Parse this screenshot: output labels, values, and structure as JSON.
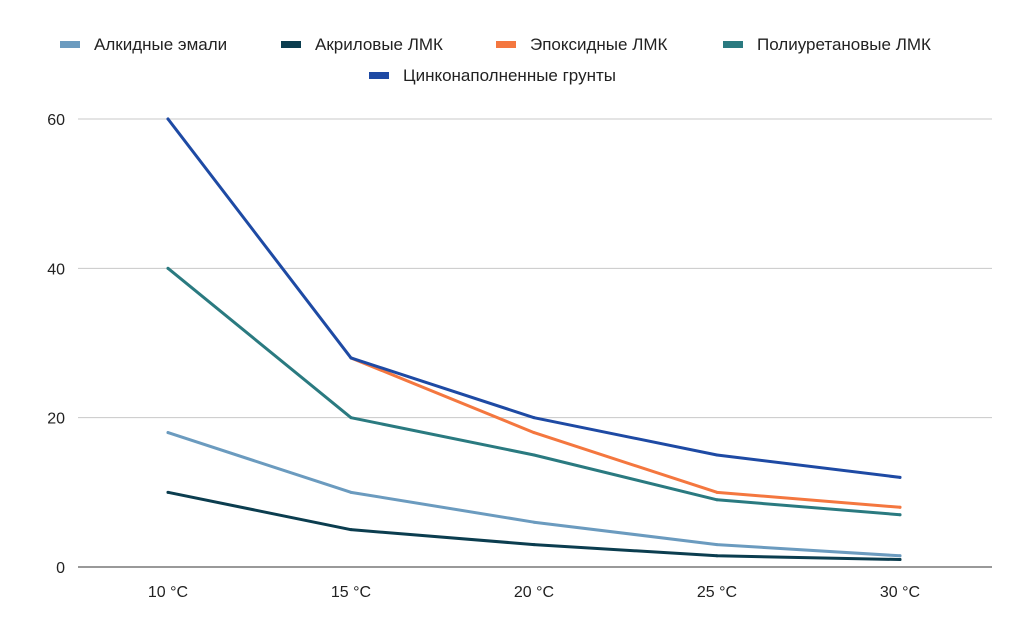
{
  "chart_data": {
    "type": "line",
    "categories": [
      "10 °C",
      "15 °C",
      "20 °C",
      "25 °C",
      "30 °C"
    ],
    "series": [
      {
        "name": "Алкидные эмали",
        "color": "#6b9bbf",
        "values": [
          18,
          10,
          6,
          3,
          1.5
        ]
      },
      {
        "name": "Акриловые ЛМК",
        "color": "#0b3d4f",
        "values": [
          10,
          5,
          3,
          1.5,
          1
        ]
      },
      {
        "name": "Эпоксидные ЛМК",
        "color": "#f4773f",
        "values": [
          null,
          28,
          18,
          10,
          8
        ]
      },
      {
        "name": "Полиуретановые ЛМК",
        "color": "#2a7a80",
        "values": [
          40,
          20,
          15,
          9,
          7
        ]
      },
      {
        "name": "Цинконаполненные грунты",
        "color": "#1e4aa4",
        "values": [
          60,
          28,
          20,
          15,
          12
        ]
      }
    ],
    "ylim": [
      0,
      60
    ],
    "yticks": [
      0,
      20,
      40,
      60
    ],
    "grid": true,
    "legend": "top",
    "title": "",
    "xlabel": "",
    "ylabel": ""
  }
}
